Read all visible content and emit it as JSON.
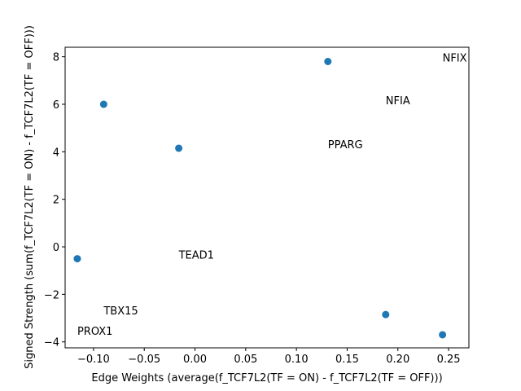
{
  "chart_data": {
    "type": "scatter",
    "title": "",
    "xlabel": "Edge Weights (average(f_TCF7L2(TF = ON) - f_TCF7L2(TF = OFF)))",
    "ylabel": "Signed Strength (sum(f_TCF7L2(TF = ON) - f_TCF7L2(TF = OFF)))",
    "xlim": [
      -0.128,
      0.27
    ],
    "ylim": [
      -4.25,
      8.4
    ],
    "xticks": [
      -0.1,
      -0.05,
      0.0,
      0.05,
      0.1,
      0.15,
      0.2,
      0.25
    ],
    "xtick_labels": [
      "−0.10",
      "−0.05",
      "0.00",
      "0.05",
      "0.10",
      "0.15",
      "0.20",
      "0.25"
    ],
    "yticks": [
      -4,
      -2,
      0,
      2,
      4,
      6,
      8
    ],
    "ytick_labels": [
      "−4",
      "−2",
      "0",
      "2",
      "4",
      "6",
      "8"
    ],
    "grid": false,
    "marker_color": "#1f77b4",
    "points": [
      {
        "x": -0.116,
        "y": -0.5
      },
      {
        "x": -0.09,
        "y": 6.0
      },
      {
        "x": -0.016,
        "y": 4.15
      },
      {
        "x": 0.131,
        "y": 7.8
      },
      {
        "x": 0.188,
        "y": -2.85
      },
      {
        "x": 0.244,
        "y": -3.7
      }
    ],
    "annotations": [
      {
        "text": "NFIX",
        "x": 0.244,
        "y": 7.8
      },
      {
        "text": "NFIA",
        "x": 0.188,
        "y": 6.0
      },
      {
        "text": "PPARG",
        "x": 0.131,
        "y": 4.15
      },
      {
        "text": "TEAD1",
        "x": -0.016,
        "y": -0.5
      },
      {
        "text": "TBX15",
        "x": -0.09,
        "y": -2.85
      },
      {
        "text": "PROX1",
        "x": -0.116,
        "y": -3.7
      }
    ]
  }
}
